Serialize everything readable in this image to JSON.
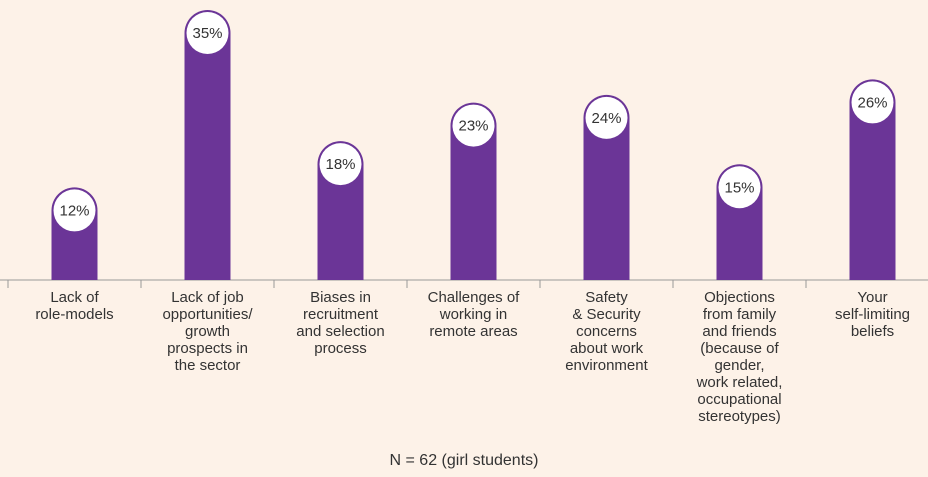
{
  "chart_data": {
    "type": "bar",
    "categories": [
      "Lack of\nrole-models",
      "Lack of job\nopportunities/\ngrowth\nprospects in\nthe sector",
      "Biases in\nrecruitment\nand selection\nprocess",
      "Challenges of\nworking in\nremote areas",
      "Safety\n& Security\nconcerns\nabout work\nenvironment",
      "Objections\nfrom family\nand friends\n(because of\ngender,\nwork related,\noccupational\nstereotypes)",
      "Your\nself-limiting\nbeliefs"
    ],
    "values": [
      12,
      35,
      18,
      23,
      24,
      15,
      26
    ],
    "value_labels": [
      "12%",
      "35%",
      "18%",
      "23%",
      "24%",
      "15%",
      "26%"
    ],
    "color": "#6b3597",
    "ylim": [
      0,
      35
    ],
    "note": "N = 62 (girl students)"
  }
}
